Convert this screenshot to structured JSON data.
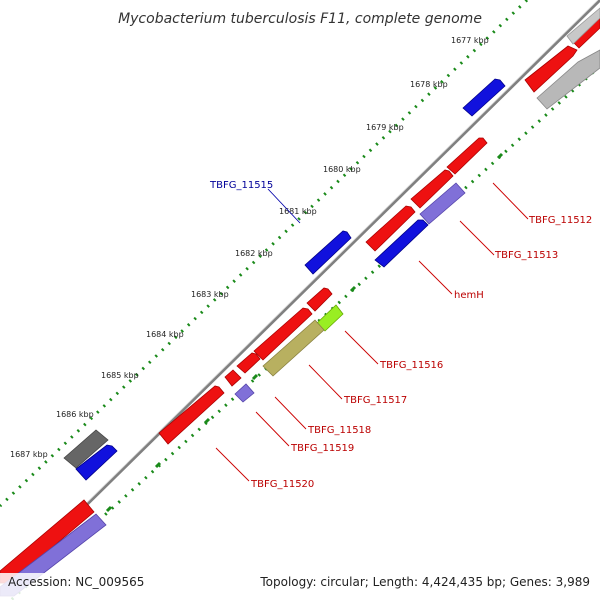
{
  "title": "Mycobacterium tuberculosis F11, complete genome",
  "footer": {
    "accession": "Accession: NC_009565",
    "topology": "Topology: circular; Length: 4,424,435 bp; Genes: 3,989"
  },
  "colors": {
    "backbone": "#808080",
    "tick": "#1a8a1a",
    "gene_red": "#ee1111",
    "gene_blue": "#1111dd",
    "gene_lavender": "#8070d8",
    "gene_olive": "#b8b060",
    "gene_lime": "#99ee22",
    "gene_gray": "#666666",
    "gene_lightgray": "#b8b8b8",
    "label_red": "#bb0000",
    "label_blue": "#000099"
  },
  "kbp_labels": [
    "1677 kbp",
    "1678 kbp",
    "1679 kbp",
    "1680 kbp",
    "1681 kbp",
    "1682 kbp",
    "1683 kbp",
    "1684 kbp",
    "1685 kbp",
    "1686 kbp",
    "1687 kbp"
  ],
  "gene_labels": [
    "TBFG_11512",
    "TBFG_11513",
    "hemH",
    "TBFG_11515",
    "TBFG_11516",
    "TBFG_11517",
    "TBFG_11518",
    "TBFG_11519",
    "TBFG_11520"
  ]
}
